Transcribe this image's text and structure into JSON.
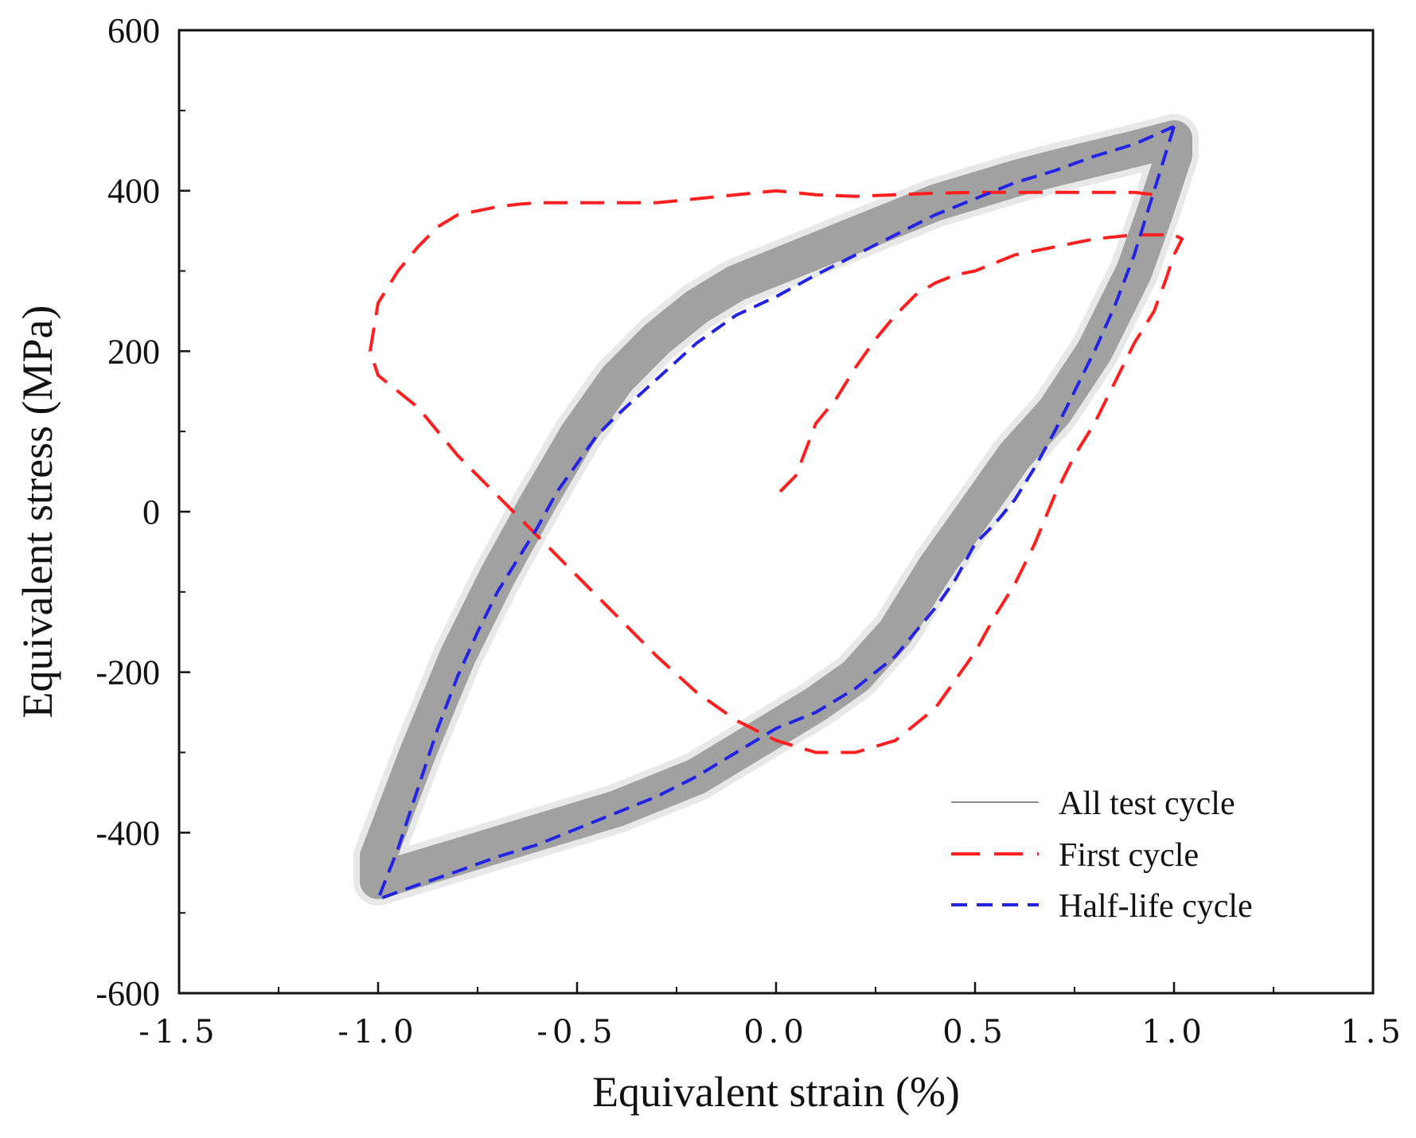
{
  "chart_data": {
    "type": "line",
    "xlabel": "Equivalent strain (%)",
    "ylabel": "Equivalent stress (MPa)",
    "xlim": [
      -1.5,
      1.5
    ],
    "ylim": [
      -600,
      600
    ],
    "xticks": [
      -1.5,
      -1.0,
      -0.5,
      0.0,
      0.5,
      1.0,
      1.5
    ],
    "xtick_labels": [
      "-1.5",
      "-1.0",
      "-0.5",
      "0.0",
      "0.5",
      "1.0",
      "1.5"
    ],
    "yticks": [
      600,
      400,
      200,
      0,
      -200,
      -400,
      -600
    ],
    "ytick_labels": [
      "600",
      "400",
      "200",
      "0",
      "-200",
      "-400",
      "-600"
    ],
    "legend_position": "bottom-right",
    "colors": {
      "all": "#8c8c8c",
      "first": "#ff1f1f",
      "half": "#2323e6"
    },
    "series": [
      {
        "name": "All test cycle",
        "style": "band",
        "upper_branch": [
          [
            -1.0,
            -430
          ],
          [
            -0.9,
            -300
          ],
          [
            -0.8,
            -180
          ],
          [
            -0.7,
            -80
          ],
          [
            -0.6,
            10
          ],
          [
            -0.5,
            95
          ],
          [
            -0.4,
            165
          ],
          [
            -0.3,
            215
          ],
          [
            -0.2,
            255
          ],
          [
            -0.1,
            285
          ],
          [
            0.0,
            305
          ],
          [
            0.1,
            325
          ],
          [
            0.2,
            345
          ],
          [
            0.3,
            365
          ],
          [
            0.4,
            385
          ],
          [
            0.5,
            400
          ],
          [
            0.6,
            415
          ],
          [
            0.7,
            428
          ],
          [
            0.8,
            440
          ],
          [
            0.9,
            452
          ],
          [
            1.0,
            465
          ]
        ],
        "lower_branch": [
          [
            1.0,
            445
          ],
          [
            0.95,
            370
          ],
          [
            0.9,
            300
          ],
          [
            0.8,
            200
          ],
          [
            0.7,
            125
          ],
          [
            0.6,
            70
          ],
          [
            0.5,
            0
          ],
          [
            0.4,
            -70
          ],
          [
            0.3,
            -150
          ],
          [
            0.2,
            -205
          ],
          [
            0.1,
            -240
          ],
          [
            0.0,
            -270
          ],
          [
            -0.1,
            -300
          ],
          [
            -0.2,
            -330
          ],
          [
            -0.3,
            -350
          ],
          [
            -0.4,
            -370
          ],
          [
            -0.5,
            -385
          ],
          [
            -0.6,
            -400
          ],
          [
            -0.7,
            -415
          ],
          [
            -0.8,
            -430
          ],
          [
            -0.9,
            -445
          ],
          [
            -1.0,
            -460
          ]
        ]
      },
      {
        "name": "First cycle",
        "style": "dashed",
        "x": [
          0.01,
          0.05,
          0.1,
          0.15,
          0.2,
          0.25,
          0.3,
          0.35,
          0.4,
          0.45,
          0.5,
          0.6,
          0.7,
          0.8,
          0.9,
          1.0,
          1.02,
          1.0,
          0.98,
          0.95,
          0.9,
          0.85,
          0.8,
          0.75,
          0.7,
          0.65,
          0.6,
          0.55,
          0.5,
          0.45,
          0.4,
          0.3,
          0.2,
          0.1,
          0.0,
          -0.1,
          -0.2,
          -0.3,
          -0.4,
          -0.5,
          -0.6,
          -0.7,
          -0.8,
          -0.9,
          -1.0,
          -1.02,
          -1.0,
          -0.95,
          -0.9,
          -0.85,
          -0.8,
          -0.75,
          -0.7,
          -0.65,
          -0.6,
          -0.55,
          -0.5,
          -0.45,
          -0.4,
          -0.35,
          -0.3,
          -0.2,
          -0.1,
          0.0,
          0.1,
          0.2,
          0.3,
          0.4,
          0.5,
          0.6,
          0.7,
          0.8,
          0.9,
          0.95
        ],
        "y": [
          25,
          45,
          110,
          140,
          180,
          215,
          245,
          270,
          285,
          295,
          300,
          320,
          330,
          340,
          345,
          345,
          340,
          320,
          290,
          250,
          210,
          160,
          110,
          70,
          20,
          -40,
          -90,
          -130,
          -175,
          -210,
          -245,
          -285,
          -300,
          -300,
          -285,
          -260,
          -225,
          -180,
          -130,
          -80,
          -30,
          20,
          70,
          130,
          170,
          200,
          260,
          300,
          330,
          355,
          370,
          375,
          380,
          383,
          385,
          385,
          385,
          385,
          385,
          385,
          385,
          390,
          395,
          400,
          395,
          393,
          395,
          397,
          398,
          398,
          398,
          398,
          398,
          395
        ]
      },
      {
        "name": "Half-life cycle",
        "style": "dashed",
        "x": [
          1.0,
          0.95,
          0.9,
          0.85,
          0.8,
          0.75,
          0.7,
          0.65,
          0.6,
          0.55,
          0.5,
          0.45,
          0.4,
          0.3,
          0.2,
          0.1,
          0.0,
          -0.1,
          -0.2,
          -0.3,
          -0.4,
          -0.5,
          -0.6,
          -0.7,
          -0.8,
          -0.9,
          -1.0,
          -0.95,
          -0.9,
          -0.85,
          -0.8,
          -0.75,
          -0.7,
          -0.65,
          -0.6,
          -0.55,
          -0.5,
          -0.45,
          -0.4,
          -0.3,
          -0.2,
          -0.1,
          0.0,
          0.1,
          0.2,
          0.3,
          0.4,
          0.5,
          0.6,
          0.7,
          0.8,
          0.9,
          1.0
        ],
        "y": [
          480,
          400,
          320,
          255,
          200,
          150,
          100,
          55,
          15,
          -15,
          -40,
          -85,
          -120,
          -180,
          -220,
          -250,
          -270,
          -300,
          -330,
          -355,
          -375,
          -395,
          -415,
          -430,
          -448,
          -465,
          -483,
          -420,
          -345,
          -270,
          -205,
          -150,
          -100,
          -60,
          -20,
          25,
          60,
          95,
          120,
          165,
          210,
          245,
          268,
          295,
          320,
          345,
          370,
          390,
          410,
          425,
          443,
          458,
          480
        ]
      }
    ]
  }
}
